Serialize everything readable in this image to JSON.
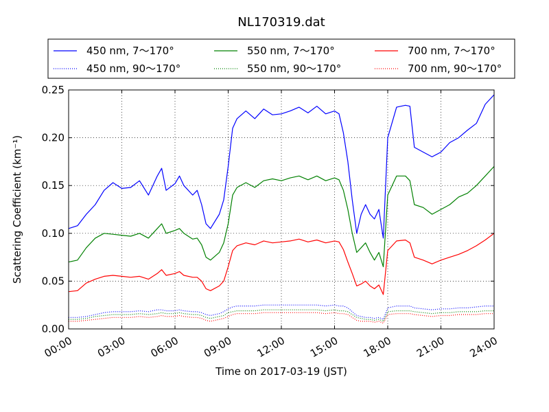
{
  "chart_data": {
    "type": "line",
    "title": "NL170319.dat",
    "xlabel": "Time on 2017-03-19 (JST)",
    "ylabel": "Scattering Coefficient (km⁻¹)",
    "xlim": [
      0,
      24
    ],
    "ylim": [
      0,
      0.25
    ],
    "grid": true,
    "legend_position": "top",
    "x_tick_labels": [
      "00:00",
      "03:00",
      "06:00",
      "09:00",
      "12:00",
      "15:00",
      "18:00",
      "21:00",
      "24:00"
    ],
    "x_ticks_hours": [
      0,
      3,
      6,
      9,
      12,
      15,
      18,
      21,
      24
    ],
    "y_ticks": [
      0.0,
      0.05,
      0.1,
      0.15,
      0.2,
      0.25
    ],
    "y_tick_labels": [
      "0.00",
      "0.05",
      "0.10",
      "0.15",
      "0.20",
      "0.25"
    ],
    "x_hours": [
      0,
      0.5,
      1,
      1.5,
      2,
      2.5,
      3,
      3.5,
      4,
      4.5,
      5,
      5.25,
      5.5,
      6,
      6.25,
      6.5,
      7,
      7.25,
      7.5,
      7.75,
      8,
      8.5,
      8.75,
      9,
      9.25,
      9.5,
      10,
      10.5,
      11,
      11.5,
      12,
      12.5,
      13,
      13.5,
      14,
      14.5,
      15,
      15.25,
      15.5,
      15.75,
      16,
      16.25,
      16.5,
      16.75,
      17,
      17.25,
      17.5,
      17.75,
      18,
      18.5,
      19,
      19.25,
      19.5,
      20,
      20.5,
      21,
      21.5,
      22,
      22.5,
      23,
      23.5,
      24
    ],
    "series": [
      {
        "name": "450 nm, 7～170°",
        "color": "#0000ff",
        "style": "solid",
        "values": [
          0.105,
          0.108,
          0.12,
          0.13,
          0.145,
          0.153,
          0.147,
          0.148,
          0.155,
          0.14,
          0.16,
          0.168,
          0.145,
          0.152,
          0.16,
          0.15,
          0.14,
          0.145,
          0.13,
          0.11,
          0.105,
          0.12,
          0.135,
          0.17,
          0.21,
          0.22,
          0.228,
          0.22,
          0.23,
          0.224,
          0.225,
          0.228,
          0.232,
          0.226,
          0.233,
          0.225,
          0.228,
          0.225,
          0.205,
          0.175,
          0.135,
          0.1,
          0.12,
          0.13,
          0.12,
          0.115,
          0.125,
          0.095,
          0.2,
          0.232,
          0.234,
          0.233,
          0.19,
          0.185,
          0.18,
          0.185,
          0.195,
          0.2,
          0.208,
          0.215,
          0.235,
          0.245
        ]
      },
      {
        "name": "550 nm, 7～170°",
        "color": "#008000",
        "style": "solid",
        "values": [
          0.07,
          0.072,
          0.085,
          0.095,
          0.1,
          0.099,
          0.098,
          0.097,
          0.1,
          0.095,
          0.105,
          0.11,
          0.1,
          0.103,
          0.105,
          0.1,
          0.094,
          0.095,
          0.088,
          0.075,
          0.072,
          0.08,
          0.09,
          0.11,
          0.14,
          0.148,
          0.153,
          0.148,
          0.155,
          0.157,
          0.155,
          0.158,
          0.16,
          0.156,
          0.16,
          0.155,
          0.158,
          0.156,
          0.145,
          0.125,
          0.1,
          0.08,
          0.085,
          0.09,
          0.08,
          0.072,
          0.08,
          0.065,
          0.14,
          0.16,
          0.16,
          0.155,
          0.13,
          0.127,
          0.12,
          0.125,
          0.13,
          0.138,
          0.142,
          0.15,
          0.16,
          0.17
        ]
      },
      {
        "name": "700 nm, 7～170°",
        "color": "#ff0000",
        "style": "solid",
        "values": [
          0.039,
          0.04,
          0.048,
          0.052,
          0.055,
          0.056,
          0.055,
          0.054,
          0.055,
          0.052,
          0.058,
          0.062,
          0.056,
          0.058,
          0.06,
          0.056,
          0.054,
          0.054,
          0.05,
          0.042,
          0.04,
          0.045,
          0.05,
          0.065,
          0.082,
          0.087,
          0.09,
          0.088,
          0.092,
          0.09,
          0.091,
          0.092,
          0.094,
          0.091,
          0.093,
          0.09,
          0.092,
          0.091,
          0.083,
          0.07,
          0.058,
          0.045,
          0.047,
          0.05,
          0.045,
          0.042,
          0.046,
          0.036,
          0.082,
          0.092,
          0.093,
          0.09,
          0.075,
          0.072,
          0.068,
          0.072,
          0.075,
          0.078,
          0.082,
          0.087,
          0.093,
          0.1
        ]
      },
      {
        "name": "450 nm, 90～170°",
        "color": "#0000ff",
        "style": "dotted",
        "values": [
          0.012,
          0.012,
          0.013,
          0.015,
          0.017,
          0.018,
          0.018,
          0.018,
          0.019,
          0.018,
          0.02,
          0.02,
          0.019,
          0.019,
          0.02,
          0.019,
          0.018,
          0.018,
          0.017,
          0.015,
          0.014,
          0.016,
          0.018,
          0.021,
          0.023,
          0.024,
          0.024,
          0.024,
          0.025,
          0.025,
          0.025,
          0.025,
          0.025,
          0.025,
          0.025,
          0.024,
          0.025,
          0.024,
          0.024,
          0.022,
          0.018,
          0.014,
          0.013,
          0.012,
          0.012,
          0.011,
          0.012,
          0.01,
          0.022,
          0.024,
          0.024,
          0.024,
          0.022,
          0.021,
          0.02,
          0.021,
          0.021,
          0.022,
          0.022,
          0.023,
          0.024,
          0.024
        ]
      },
      {
        "name": "550 nm, 90～170°",
        "color": "#008000",
        "style": "dotted",
        "values": [
          0.01,
          0.01,
          0.011,
          0.013,
          0.014,
          0.015,
          0.015,
          0.015,
          0.016,
          0.015,
          0.016,
          0.017,
          0.016,
          0.016,
          0.017,
          0.016,
          0.015,
          0.015,
          0.014,
          0.012,
          0.011,
          0.013,
          0.014,
          0.017,
          0.018,
          0.019,
          0.019,
          0.019,
          0.02,
          0.02,
          0.02,
          0.02,
          0.02,
          0.02,
          0.02,
          0.019,
          0.02,
          0.019,
          0.019,
          0.018,
          0.015,
          0.012,
          0.011,
          0.01,
          0.01,
          0.009,
          0.01,
          0.008,
          0.018,
          0.019,
          0.019,
          0.019,
          0.018,
          0.017,
          0.016,
          0.017,
          0.017,
          0.018,
          0.018,
          0.018,
          0.019,
          0.019
        ]
      },
      {
        "name": "700 nm, 90～170°",
        "color": "#ff0000",
        "style": "dotted",
        "values": [
          0.008,
          0.008,
          0.009,
          0.01,
          0.011,
          0.012,
          0.012,
          0.012,
          0.013,
          0.012,
          0.013,
          0.014,
          0.013,
          0.013,
          0.014,
          0.013,
          0.012,
          0.012,
          0.011,
          0.009,
          0.008,
          0.01,
          0.011,
          0.013,
          0.015,
          0.016,
          0.016,
          0.016,
          0.017,
          0.017,
          0.017,
          0.017,
          0.017,
          0.017,
          0.017,
          0.016,
          0.017,
          0.016,
          0.016,
          0.015,
          0.012,
          0.009,
          0.008,
          0.008,
          0.008,
          0.007,
          0.008,
          0.006,
          0.015,
          0.016,
          0.016,
          0.016,
          0.015,
          0.014,
          0.013,
          0.014,
          0.014,
          0.015,
          0.015,
          0.015,
          0.016,
          0.016
        ]
      }
    ]
  }
}
